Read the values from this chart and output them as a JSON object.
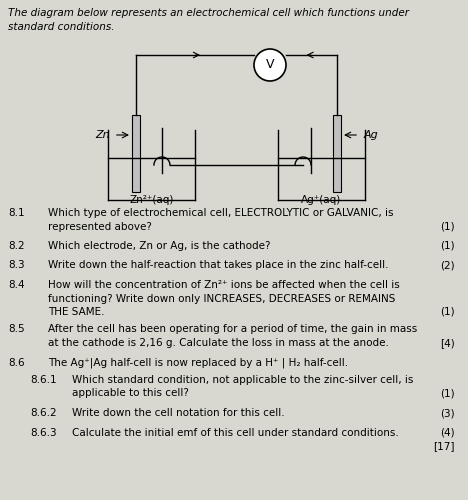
{
  "bg_color": "#d8d8d0",
  "title_line1": "The diagram below represents an electrochemical cell which functions under",
  "title_line2": "standard conditions.",
  "questions": [
    {
      "num": "8.1",
      "text": "Which type of electrochemical cell, ELECTROLYTIC or GALVANIC, is\nrepresented above?",
      "marks": "(1)",
      "indent": false
    },
    {
      "num": "8.2",
      "text": "Which electrode, Zn or Ag, is the cathode?",
      "marks": "(1)",
      "indent": false
    },
    {
      "num": "8.3",
      "text": "Write down the half-reaction that takes place in the zinc half-cell.",
      "marks": "(2)",
      "indent": false
    },
    {
      "num": "8.4",
      "text": "How will the concentration of Zn²⁺ ions be affected when the cell is\nfunctioning? Write down only INCREASES, DECREASES or REMAINS\nTHE SAME.",
      "marks": "(1)",
      "indent": false
    },
    {
      "num": "8.5",
      "text": "After the cell has been operating for a period of time, the gain in mass\nat the cathode is 2,16 g. Calculate the loss in mass at the anode.",
      "marks": "[4)",
      "indent": false
    },
    {
      "num": "8.6",
      "text": "The Ag⁺|Ag half-cell is now replaced by a H⁺ | H₂ half-cell.",
      "marks": "",
      "indent": false
    },
    {
      "num": "8.6.1",
      "text": "Which standard condition, not applicable to the zinc-silver cell, is\napplicable to this cell?",
      "marks": "(1)",
      "indent": true
    },
    {
      "num": "8.6.2",
      "text": "Write down the cell notation for this cell.",
      "marks": "(3)",
      "indent": true
    },
    {
      "num": "8.6.3",
      "text": "Calculate the initial emf of this cell under standard conditions.",
      "marks": "(4)\n[17]",
      "indent": true
    }
  ],
  "diagram": {
    "left_beaker_label": "Zn²⁺(aq)",
    "right_beaker_label": "Ag⁺(aq)",
    "left_electrode_label": "Zn",
    "right_electrode_label": "Ag"
  }
}
